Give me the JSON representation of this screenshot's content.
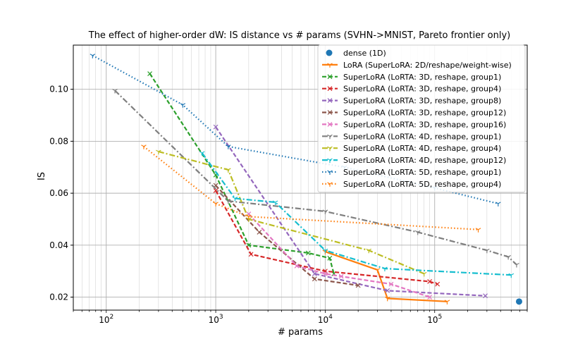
{
  "chart_data": {
    "type": "line",
    "title": "The effect of higher-order dW: IS distance vs # params (SVHN->MNIST, Pareto frontier only)",
    "xlabel": "# params",
    "ylabel": "IS",
    "xscale": "log",
    "xlim": [
      50,
      700000
    ],
    "ylim": [
      0.015,
      0.117
    ],
    "grid": true,
    "legend_position": "top-right",
    "x_ticks": [
      {
        "value": 100,
        "base": "10",
        "exp": "2"
      },
      {
        "value": 1000,
        "base": "10",
        "exp": "3"
      },
      {
        "value": 10000,
        "base": "10",
        "exp": "4"
      },
      {
        "value": 100000,
        "base": "10",
        "exp": "5"
      }
    ],
    "y_ticks": [
      {
        "value": 0.02,
        "label": "0.02"
      },
      {
        "value": 0.04,
        "label": "0.04"
      },
      {
        "value": 0.06,
        "label": "0.06"
      },
      {
        "value": 0.08,
        "label": "0.08"
      },
      {
        "value": 0.1,
        "label": "0.10"
      }
    ],
    "series": [
      {
        "name": "dense (1D)",
        "color": "#1f77b4",
        "linestyle": "none",
        "marker": "circle",
        "x": [
          590000
        ],
        "y": [
          0.0183
        ]
      },
      {
        "name": "LoRA (SuperLoRA: 2D/reshape/weight-wise)",
        "color": "#ff7f0e",
        "linestyle": "solid",
        "marker": "tri",
        "x": [
          10000,
          30000,
          37000,
          130000
        ],
        "y": [
          0.0375,
          0.0305,
          0.0195,
          0.0183
        ]
      },
      {
        "name": "SuperLoRA (LoRTA: 3D, reshape, group1)",
        "color": "#2ca02c",
        "linestyle": "dashed",
        "marker": "x",
        "x": [
          250,
          1000,
          2000,
          7000,
          11000,
          12000
        ],
        "y": [
          0.106,
          0.067,
          0.04,
          0.037,
          0.035,
          0.029
        ]
      },
      {
        "name": "SuperLoRA (LoRTA: 3D, reshape, group4)",
        "color": "#d62728",
        "linestyle": "dashed",
        "marker": "x",
        "x": [
          1000,
          2100,
          10000,
          90000,
          106000
        ],
        "y": [
          0.061,
          0.0365,
          0.03,
          0.026,
          0.025
        ]
      },
      {
        "name": "SuperLoRA (LoRTA: 3D, reshape, group8)",
        "color": "#9467bd",
        "linestyle": "dashed",
        "marker": "x",
        "x": [
          1000,
          8000,
          37000,
          290000
        ],
        "y": [
          0.0855,
          0.029,
          0.0225,
          0.0205
        ]
      },
      {
        "name": "SuperLoRA (LoRTA: 3D, reshape, group12)",
        "color": "#8c564b",
        "linestyle": "dashed",
        "marker": "x",
        "x": [
          1000,
          2500,
          8000,
          20000
        ],
        "y": [
          0.063,
          0.045,
          0.027,
          0.0245
        ]
      },
      {
        "name": "SuperLoRA (LoRTA: 3D, reshape, group16)",
        "color": "#e377c2",
        "linestyle": "dashed",
        "marker": "x",
        "x": [
          2000,
          5500,
          10000,
          14000,
          40000,
          90000
        ],
        "y": [
          0.052,
          0.032,
          0.029,
          0.028,
          0.025,
          0.02
        ]
      },
      {
        "name": "SuperLoRA (LoRTA: 4D, reshape, group1)",
        "color": "#7f7f7f",
        "linestyle": "dashdot",
        "marker": "tri",
        "x": [
          120,
          1300,
          10000,
          70000,
          300000,
          470000,
          560000
        ],
        "y": [
          0.0995,
          0.057,
          0.053,
          0.045,
          0.038,
          0.0355,
          0.0325
        ]
      },
      {
        "name": "SuperLoRA (LoRTA: 4D, reshape, group4)",
        "color": "#bcbd22",
        "linestyle": "dashdot",
        "marker": "tri",
        "x": [
          300,
          1300,
          2000,
          25000,
          80000
        ],
        "y": [
          0.076,
          0.069,
          0.05,
          0.038,
          0.029
        ]
      },
      {
        "name": "SuperLoRA (LoRTA: 4D, reshape, group12)",
        "color": "#17becf",
        "linestyle": "dashdot",
        "marker": "tri",
        "x": [
          750,
          1500,
          3500,
          10000,
          35000,
          500000
        ],
        "y": [
          0.0755,
          0.058,
          0.0565,
          0.038,
          0.031,
          0.0285
        ]
      },
      {
        "name": "SuperLoRA (LoRTA: 5D, reshape, group1)",
        "color": "#1f77b4",
        "linestyle": "dotted",
        "marker": "tri",
        "x": [
          75,
          500,
          1300,
          15000,
          100000,
          380000
        ],
        "y": [
          0.113,
          0.094,
          0.078,
          0.07,
          0.062,
          0.056
        ]
      },
      {
        "name": "SuperLoRA (LoRTA: 5D, reshape, group4)",
        "color": "#ff7f0e",
        "linestyle": "dotted",
        "marker": "tri",
        "x": [
          220,
          1000,
          2000,
          250000
        ],
        "y": [
          0.078,
          0.056,
          0.051,
          0.046
        ]
      }
    ]
  }
}
